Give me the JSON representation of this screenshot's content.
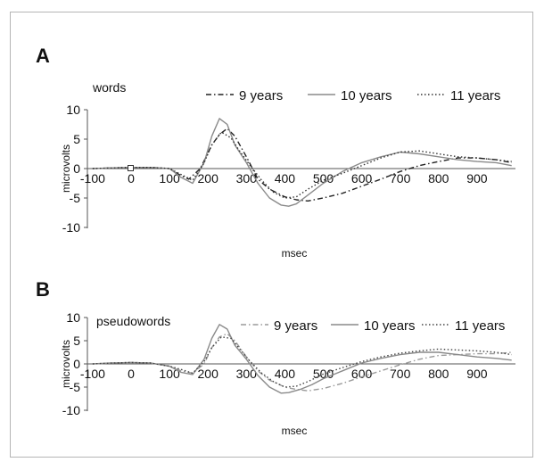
{
  "chart_data": [
    {
      "type": "line",
      "panel_label": "A",
      "title": "words",
      "xlabel": "msec",
      "ylabel": "microvolts",
      "xlim": [
        -100,
        1000
      ],
      "ylim": [
        -10,
        10
      ],
      "x_ticks": [
        "-100",
        "0",
        "100",
        "200",
        "300",
        "400",
        "500",
        "600",
        "700",
        "800",
        "900"
      ],
      "y_ticks": [
        "10",
        "5",
        "0",
        "-5",
        "-10"
      ],
      "x_tick_values": [
        -100,
        0,
        100,
        200,
        300,
        400,
        500,
        600,
        700,
        800,
        900
      ],
      "y_tick_values": [
        10,
        5,
        0,
        -5,
        -10
      ],
      "grid": false,
      "legend_position": "top",
      "series": [
        {
          "name": "9 years",
          "color": "#222222",
          "style": "dash-dot",
          "x": [
            -100,
            -50,
            0,
            50,
            100,
            130,
            150,
            180,
            210,
            230,
            250,
            270,
            300,
            330,
            360,
            400,
            430,
            460,
            500,
            550,
            600,
            650,
            700,
            750,
            800,
            850,
            900,
            950,
            990
          ],
          "y": [
            0,
            0.1,
            0.2,
            0.2,
            0,
            -1.2,
            -1.8,
            0,
            4,
            5.8,
            6.8,
            5.5,
            2,
            -1.8,
            -3.5,
            -4.8,
            -5.3,
            -5.5,
            -5,
            -4.2,
            -3,
            -1.8,
            -0.5,
            0.5,
            1.2,
            1.8,
            1.8,
            1.5,
            1
          ]
        },
        {
          "name": "10 years",
          "color": "#8a8a8a",
          "style": "solid",
          "x": [
            -100,
            -50,
            0,
            50,
            100,
            130,
            160,
            190,
            210,
            230,
            250,
            270,
            300,
            330,
            360,
            390,
            410,
            430,
            460,
            500,
            550,
            600,
            650,
            700,
            750,
            800,
            850,
            900,
            950,
            990
          ],
          "y": [
            0,
            0.1,
            0.2,
            0.2,
            0,
            -1.5,
            -2.5,
            1,
            5.5,
            8.5,
            7.5,
            4,
            1,
            -2.5,
            -5,
            -6.2,
            -6.4,
            -6,
            -4.5,
            -2.5,
            -0.5,
            1,
            2,
            2.8,
            2.5,
            2,
            1.5,
            1.2,
            1,
            0.5
          ]
        },
        {
          "name": "11 years",
          "color": "#333333",
          "style": "dotted",
          "x": [
            -100,
            -50,
            0,
            50,
            100,
            130,
            160,
            190,
            210,
            235,
            260,
            280,
            310,
            340,
            370,
            400,
            430,
            460,
            500,
            550,
            600,
            650,
            700,
            750,
            800,
            850,
            900,
            950,
            990
          ],
          "y": [
            0,
            0.1,
            0.2,
            0.2,
            0,
            -1,
            -2,
            1,
            4,
            6.2,
            5.2,
            3.2,
            0.5,
            -2,
            -4,
            -5,
            -4.8,
            -3.5,
            -2,
            -0.8,
            0.5,
            1.8,
            2.8,
            3,
            2.5,
            2,
            1.8,
            1.5,
            1.2
          ]
        }
      ]
    },
    {
      "type": "line",
      "panel_label": "B",
      "title": "pseudowords",
      "xlabel": "msec",
      "ylabel": "microvolts",
      "xlim": [
        -100,
        1000
      ],
      "ylim": [
        -10,
        10
      ],
      "x_ticks": [
        "-100",
        "0",
        "100",
        "200",
        "300",
        "400",
        "500",
        "600",
        "700",
        "800",
        "900"
      ],
      "y_ticks": [
        "10",
        "5",
        "0",
        "-5",
        "-10"
      ],
      "x_tick_values": [
        -100,
        0,
        100,
        200,
        300,
        400,
        500,
        600,
        700,
        800,
        900
      ],
      "y_tick_values": [
        10,
        5,
        0,
        -5,
        -10
      ],
      "grid": false,
      "legend_position": "top",
      "series": [
        {
          "name": "9 years",
          "color": "#9a9a9a",
          "style": "dash-dot",
          "x": [
            -100,
            -50,
            0,
            50,
            100,
            130,
            160,
            190,
            210,
            230,
            250,
            270,
            300,
            330,
            360,
            400,
            430,
            460,
            500,
            550,
            600,
            650,
            700,
            750,
            800,
            850,
            900,
            950,
            990
          ],
          "y": [
            0,
            0.2,
            0.3,
            0.2,
            -0.5,
            -1.5,
            -2,
            0,
            3.5,
            5.8,
            6.5,
            5,
            1.5,
            -1.5,
            -3.5,
            -5,
            -5.5,
            -5.8,
            -5.3,
            -4.2,
            -2.8,
            -1.5,
            -0.2,
            1,
            1.8,
            2,
            2.2,
            2.2,
            2.5
          ]
        },
        {
          "name": "10 years",
          "color": "#8a8a8a",
          "style": "solid",
          "x": [
            -100,
            -50,
            0,
            50,
            100,
            130,
            160,
            190,
            210,
            230,
            250,
            270,
            300,
            330,
            360,
            390,
            410,
            440,
            470,
            500,
            550,
            600,
            650,
            700,
            750,
            800,
            850,
            900,
            950,
            990
          ],
          "y": [
            0,
            0.2,
            0.3,
            0.2,
            -0.5,
            -1.8,
            -2.3,
            1,
            5.5,
            8.5,
            7.5,
            4,
            1,
            -2.5,
            -5,
            -6.3,
            -6.2,
            -5.5,
            -4.5,
            -3.2,
            -1.5,
            0.2,
            1.2,
            2,
            2.5,
            2.5,
            2,
            1.5,
            1.2,
            0.8
          ]
        },
        {
          "name": "11 years",
          "color": "#444444",
          "style": "dotted",
          "x": [
            -100,
            -50,
            0,
            50,
            100,
            130,
            160,
            190,
            210,
            235,
            260,
            280,
            310,
            340,
            370,
            400,
            430,
            460,
            500,
            550,
            600,
            650,
            700,
            750,
            800,
            850,
            900,
            950,
            990
          ],
          "y": [
            0,
            0.2,
            0.3,
            0.2,
            -0.5,
            -1.2,
            -2,
            0.5,
            3.5,
            5.8,
            5.5,
            3.5,
            0.5,
            -2,
            -3.8,
            -5,
            -4.8,
            -3.8,
            -2.2,
            -0.8,
            0.5,
            1.5,
            2.3,
            2.8,
            3.2,
            3,
            2.8,
            2.5,
            2
          ]
        }
      ]
    }
  ]
}
